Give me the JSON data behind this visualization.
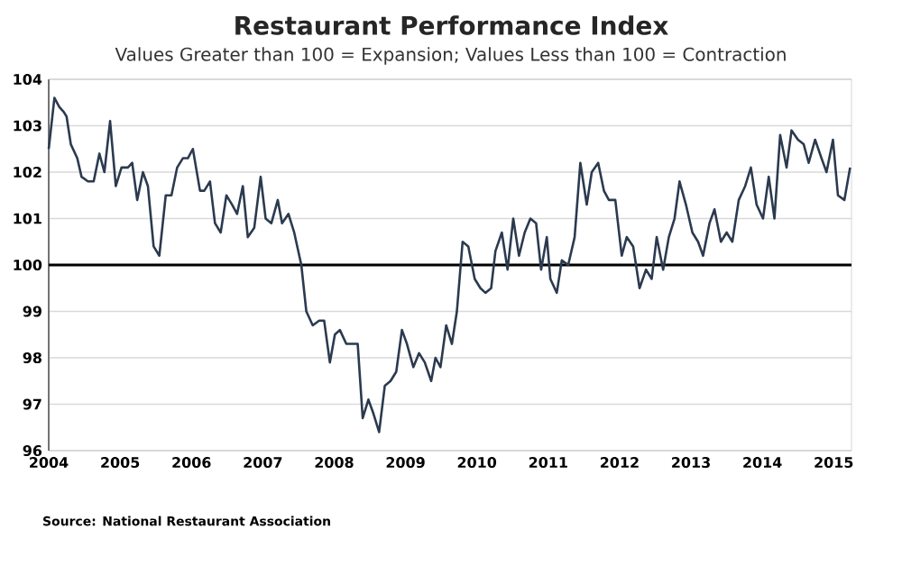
{
  "chart_data": {
    "type": "line",
    "title": "Restaurant Performance Index",
    "subtitle": "Values Greater than 100 = Expansion; Values Less than 100 = Contraction",
    "annotations": [
      "Source: National Restaurant Association"
    ],
    "xlim": [
      2004,
      2015.25
    ],
    "xticks": [
      2004,
      2005,
      2006,
      2007,
      2008,
      2009,
      2010,
      2011,
      2012,
      2013,
      2014,
      2015
    ],
    "ylim": [
      96,
      104
    ],
    "yticks": [
      96,
      97,
      98,
      99,
      100,
      101,
      102,
      103,
      104
    ],
    "grid": "y",
    "marker": "none",
    "line_style": "solid",
    "ref_lines": [
      {
        "axis": "y",
        "value": 100,
        "color": "#000000"
      }
    ],
    "series": [
      {
        "color": "#2b3a4f",
        "x": [
          2004.0,
          2004.08,
          2004.15,
          2004.21,
          2004.25,
          2004.31,
          2004.4,
          2004.46,
          2004.55,
          2004.63,
          2004.71,
          2004.78,
          2004.86,
          2004.94,
          2005.02,
          2005.11,
          2005.17,
          2005.24,
          2005.32,
          2005.39,
          2005.47,
          2005.55,
          2005.64,
          2005.72,
          2005.8,
          2005.88,
          2005.95,
          2006.02,
          2006.12,
          2006.18,
          2006.26,
          2006.33,
          2006.41,
          2006.49,
          2006.57,
          2006.64,
          2006.72,
          2006.79,
          2006.88,
          2006.97,
          2007.04,
          2007.12,
          2007.21,
          2007.27,
          2007.36,
          2007.44,
          2007.54,
          2007.61,
          2007.7,
          2007.79,
          2007.86,
          2007.94,
          2008.01,
          2008.08,
          2008.17,
          2008.25,
          2008.33,
          2008.4,
          2008.48,
          2008.55,
          2008.63,
          2008.71,
          2008.79,
          2008.87,
          2008.95,
          2009.02,
          2009.11,
          2009.19,
          2009.27,
          2009.36,
          2009.42,
          2009.49,
          2009.57,
          2009.65,
          2009.72,
          2009.8,
          2009.88,
          2009.97,
          2010.05,
          2010.12,
          2010.2,
          2010.26,
          2010.35,
          2010.43,
          2010.51,
          2010.59,
          2010.67,
          2010.75,
          2010.83,
          2010.9,
          2010.98,
          2011.03,
          2011.12,
          2011.19,
          2011.28,
          2011.37,
          2011.45,
          2011.54,
          2011.61,
          2011.7,
          2011.78,
          2011.85,
          2011.94,
          2012.03,
          2012.1,
          2012.19,
          2012.28,
          2012.37,
          2012.45,
          2012.52,
          2012.61,
          2012.69,
          2012.77,
          2012.84,
          2012.93,
          2013.02,
          2013.1,
          2013.17,
          2013.26,
          2013.33,
          2013.42,
          2013.5,
          2013.58,
          2013.67,
          2013.76,
          2013.84,
          2013.92,
          2014.01,
          2014.09,
          2014.17,
          2014.25,
          2014.34,
          2014.41,
          2014.5,
          2014.58,
          2014.65,
          2014.74,
          2014.83,
          2014.9,
          2014.99,
          2015.06,
          2015.15,
          2015.23
        ],
        "values": [
          102.5,
          103.6,
          103.4,
          103.3,
          103.2,
          102.6,
          102.3,
          101.9,
          101.8,
          101.8,
          102.4,
          102.0,
          103.1,
          101.7,
          102.1,
          102.1,
          102.2,
          101.4,
          102.0,
          101.7,
          100.4,
          100.2,
          101.5,
          101.5,
          102.1,
          102.3,
          102.3,
          102.5,
          101.6,
          101.6,
          101.8,
          100.9,
          100.7,
          101.5,
          101.3,
          101.1,
          101.7,
          100.6,
          100.8,
          101.9,
          101.0,
          100.9,
          101.4,
          100.9,
          101.1,
          100.7,
          100.0,
          99.0,
          98.7,
          98.8,
          98.8,
          97.9,
          98.5,
          98.6,
          98.3,
          98.3,
          98.3,
          96.7,
          97.1,
          96.8,
          96.4,
          97.4,
          97.5,
          97.7,
          98.6,
          98.3,
          97.8,
          98.1,
          97.9,
          97.5,
          98.0,
          97.8,
          98.7,
          98.3,
          99.0,
          100.5,
          100.4,
          99.7,
          99.5,
          99.4,
          99.5,
          100.3,
          100.7,
          99.9,
          101.0,
          100.2,
          100.7,
          101.0,
          100.9,
          99.9,
          100.6,
          99.7,
          99.4,
          100.1,
          100.0,
          100.6,
          102.2,
          101.3,
          102.0,
          102.2,
          101.6,
          101.4,
          101.4,
          100.2,
          100.6,
          100.4,
          99.5,
          99.9,
          99.7,
          100.6,
          99.9,
          100.6,
          101.0,
          101.8,
          101.3,
          100.7,
          100.5,
          100.2,
          100.9,
          101.2,
          100.5,
          100.7,
          100.5,
          101.4,
          101.7,
          102.1,
          101.3,
          101.0,
          101.9,
          101.0,
          102.8,
          102.1,
          102.9,
          102.7,
          102.6,
          102.2,
          102.7,
          102.3,
          102.0,
          102.7,
          101.5,
          101.4,
          102.1
        ]
      }
    ]
  }
}
